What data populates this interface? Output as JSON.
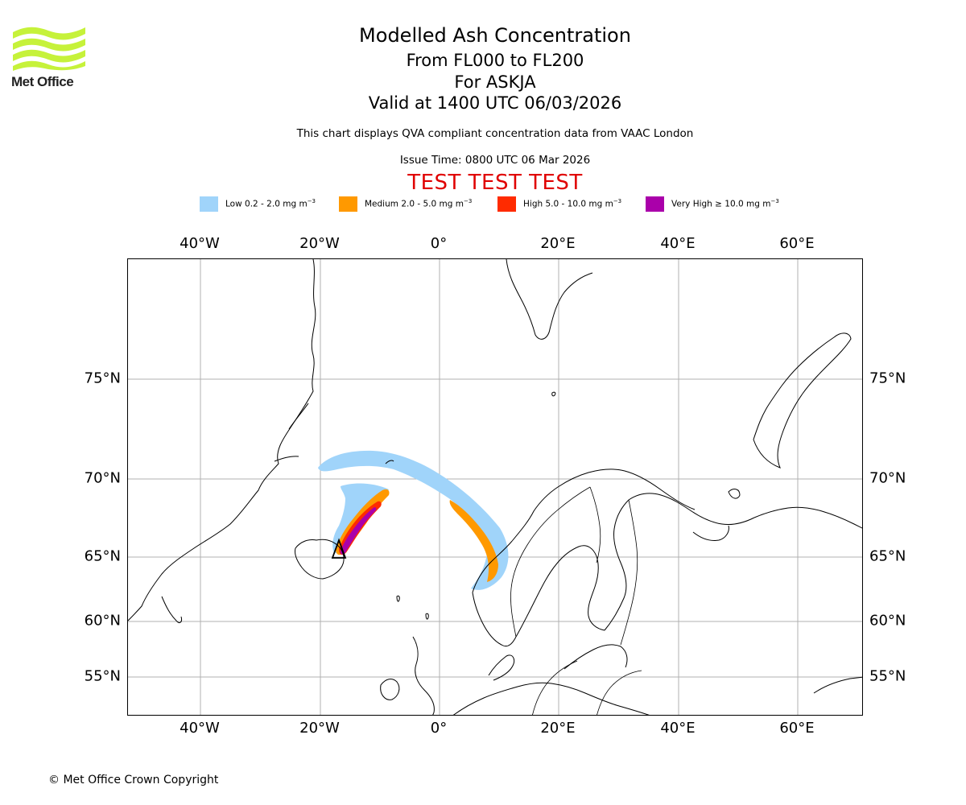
{
  "header": {
    "logo_text": "Met Office",
    "title": "Modelled Ash Concentration",
    "flight_levels": "From FL000 to FL200",
    "volcano": "For ASKJA",
    "valid_time": "Valid at 1400 UTC 06/03/2026",
    "description": "This chart displays QVA compliant concentration data from VAAC London",
    "issue_time": "Issue Time: 0800 UTC 06 Mar 2026",
    "test_banner": "TEST TEST TEST"
  },
  "legend": [
    {
      "label": "Low 0.2 - 2.0 mg m",
      "unit_exp": "−3",
      "color": "#a0d4fa"
    },
    {
      "label": "Medium 2.0 - 5.0 mg m",
      "unit_exp": "−3",
      "color": "#ff9900"
    },
    {
      "label": "High 5.0 - 10.0 mg m",
      "unit_exp": "−3",
      "color": "#ff2b00"
    },
    {
      "label": "Very High ≥ 10.0 mg m",
      "unit_exp": "−3",
      "color": "#aa00aa"
    }
  ],
  "map": {
    "lon_ticks": [
      "40°W",
      "20°W",
      "0°",
      "20°E",
      "40°E",
      "60°E"
    ],
    "lat_ticks": [
      "75°N",
      "70°N",
      "65°N",
      "60°N",
      "55°N"
    ],
    "volcano_marker": "triangle",
    "gridline_color": "#b0b0b0",
    "coastline_color": "#000000"
  },
  "footer": {
    "copyright": "© Met Office Crown Copyright"
  }
}
